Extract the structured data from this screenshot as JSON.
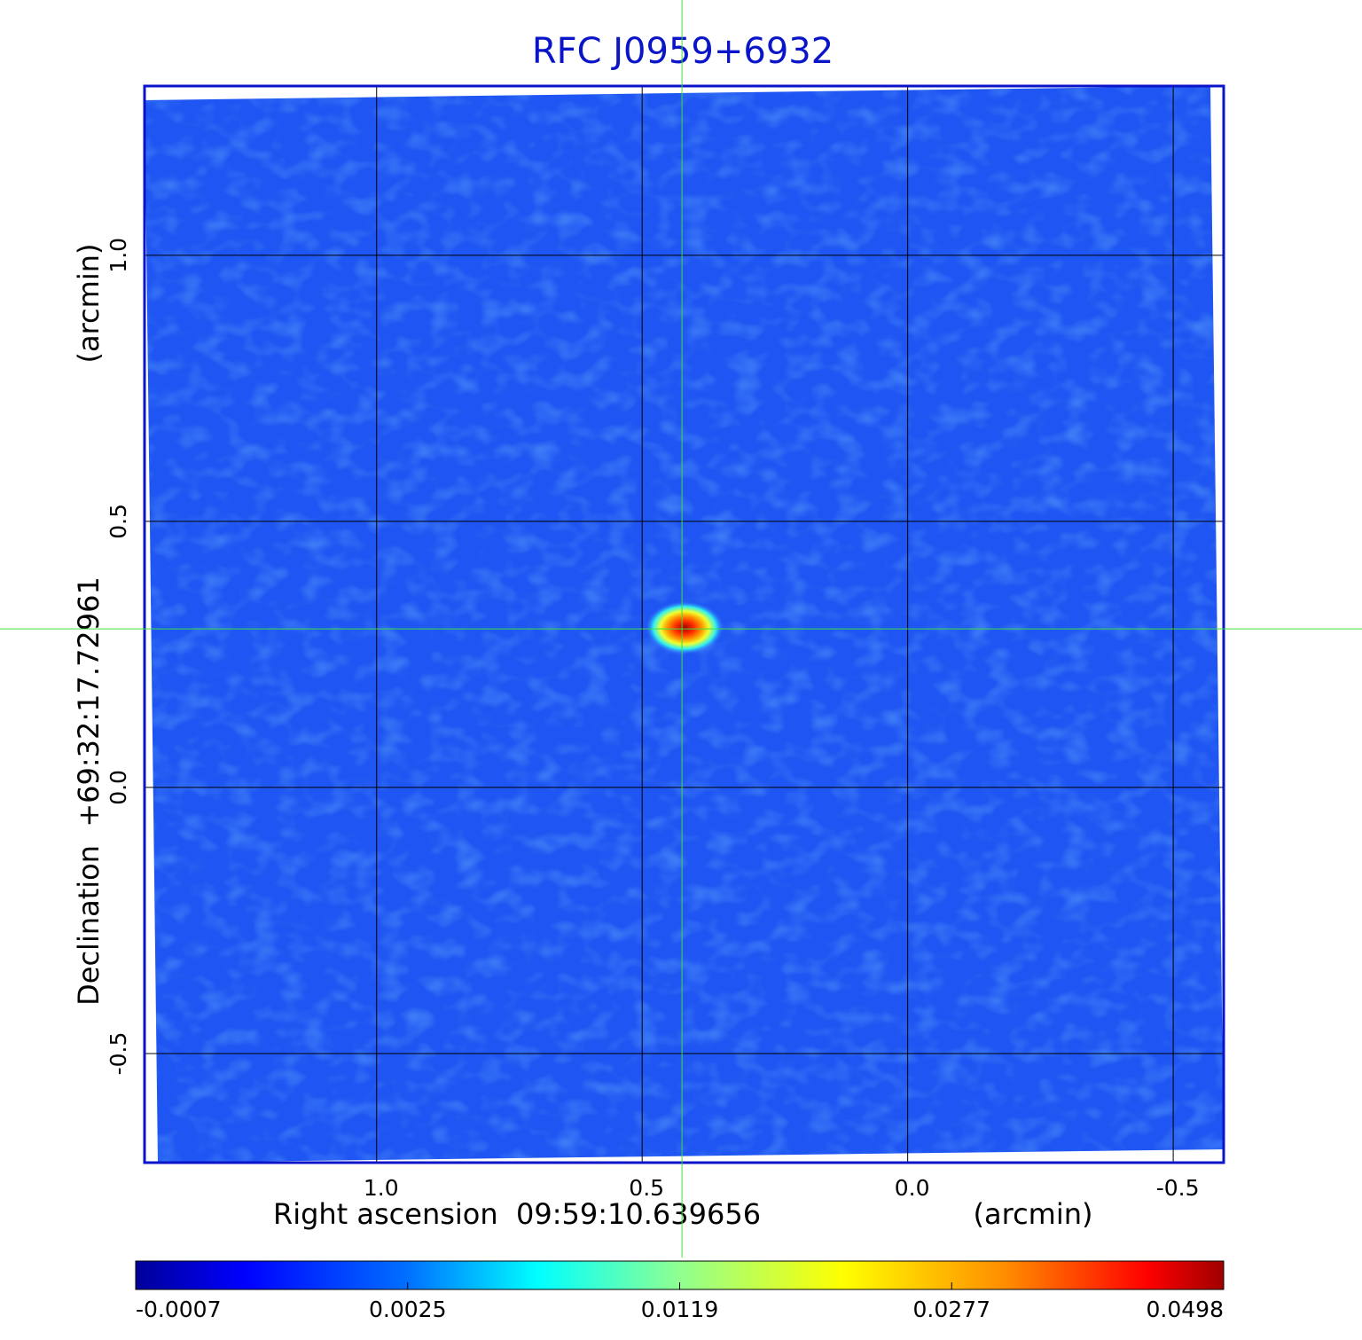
{
  "chart_data": {
    "type": "image",
    "title": "RFC J0959+6932",
    "x_label": "Right ascension  09:59:10.639656",
    "x_unit": "(arcmin)",
    "y_label": "Declination  +69:32:17.72961",
    "y_unit": "(arcmin)",
    "xlim": [
      1.437,
      -0.595
    ],
    "ylim": [
      -0.705,
      1.318
    ],
    "xticks": [
      {
        "value": 1,
        "label": "1.0"
      },
      0.5,
      {
        "value": 0,
        "label": "0.0"
      },
      -0.5
    ],
    "yticks": [
      -0.5,
      {
        "value": 0,
        "label": "0.0"
      },
      0.5,
      {
        "value": 1,
        "label": "1.0"
      }
    ],
    "grid": true,
    "colormap": "jet",
    "crosshair": {
      "x": 0.425,
      "y": 0.298,
      "color": "#3ee03e"
    },
    "source": {
      "x": 0.42,
      "y": 0.3,
      "peak": 0.0498
    },
    "colorbar_ticks": [
      -0.0007,
      0.0025,
      0.0119,
      0.0277,
      0.0498
    ],
    "frame_color": "#0a14c8"
  }
}
